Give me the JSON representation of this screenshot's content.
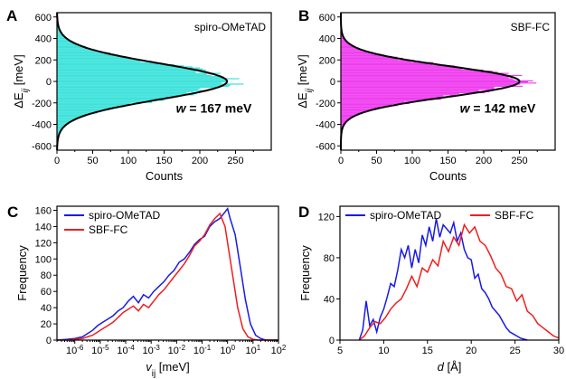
{
  "chart_data": [
    {
      "panel": "A",
      "type": "bar",
      "orientation": "horizontal-histogram",
      "ylabel_main": "ΔE",
      "ylabel_sub": "ij",
      "ylabel_unit": " [meV]",
      "xlabel": "Counts",
      "xlim": [
        0,
        300
      ],
      "ylim": [
        -640,
        640
      ],
      "xticks": [
        "0",
        "50",
        "100",
        "150",
        "200",
        "250"
      ],
      "yticks": [
        "600",
        "400",
        "200",
        "0",
        "-200",
        "-400",
        "-600"
      ],
      "series_label": "spiro-OMeTAD",
      "annotation_w": "w",
      "annotation_eq": " = 167 meV",
      "peak": 238,
      "sigma": 167,
      "color": "#33e0d8",
      "fit_color": "#000000"
    },
    {
      "panel": "B",
      "type": "bar",
      "orientation": "horizontal-histogram",
      "ylabel_main": "ΔE",
      "ylabel_sub": "ij",
      "ylabel_unit": " [meV]",
      "xlabel": "Counts",
      "xlim": [
        0,
        300
      ],
      "ylim": [
        -640,
        640
      ],
      "xticks": [
        "0",
        "50",
        "100",
        "150",
        "200",
        "250"
      ],
      "yticks": [
        "600",
        "400",
        "200",
        "0",
        "-200",
        "-400",
        "-600"
      ],
      "series_label": "SBF-FC",
      "annotation_w": "w",
      "annotation_eq": " = 142 meV",
      "peak": 250,
      "sigma": 142,
      "color": "#ee33ee",
      "fit_color": "#000000"
    },
    {
      "panel": "C",
      "type": "line",
      "xscale": "log",
      "xlabel_main": "v",
      "xlabel_sub": "ij",
      "xlabel_unit": " [meV]",
      "ylabel": "Frequency",
      "xlim": [
        -6.7,
        2
      ],
      "ylim": [
        0,
        165
      ],
      "xticks": [
        "-6",
        "-5",
        "-4",
        "-3",
        "-2",
        "-1",
        "0",
        "1",
        "2"
      ],
      "yticks": [
        "0",
        "20",
        "40",
        "60",
        "80",
        "100",
        "120",
        "140",
        "160"
      ],
      "legend_position": "top-left",
      "series": [
        {
          "name": "spiro-OMeTAD",
          "color": "#1a1ae6",
          "x": [
            -6.7,
            -6.3,
            -6.0,
            -5.7,
            -5.5,
            -5.3,
            -5.1,
            -4.9,
            -4.7,
            -4.5,
            -4.3,
            -4.1,
            -3.9,
            -3.7,
            -3.5,
            -3.3,
            -3.1,
            -2.9,
            -2.7,
            -2.5,
            -2.3,
            -2.1,
            -1.9,
            -1.7,
            -1.5,
            -1.3,
            -1.1,
            -0.9,
            -0.7,
            -0.5,
            -0.3,
            -0.1,
            0.0,
            0.1,
            0.3,
            0.5,
            0.7,
            0.9,
            1.1,
            1.3,
            1.5,
            1.7,
            2.0
          ],
          "y": [
            0,
            1,
            2,
            4,
            8,
            12,
            18,
            22,
            26,
            30,
            36,
            40,
            48,
            54,
            46,
            56,
            52,
            60,
            66,
            72,
            80,
            86,
            96,
            100,
            108,
            118,
            124,
            128,
            140,
            146,
            150,
            158,
            162,
            150,
            130,
            90,
            50,
            20,
            6,
            2,
            0,
            0,
            0
          ]
        },
        {
          "name": "SBF-FC",
          "color": "#ee1f1f",
          "x": [
            -6.7,
            -6.3,
            -6.0,
            -5.7,
            -5.5,
            -5.3,
            -5.1,
            -4.9,
            -4.7,
            -4.5,
            -4.3,
            -4.1,
            -3.9,
            -3.7,
            -3.5,
            -3.3,
            -3.1,
            -2.9,
            -2.7,
            -2.5,
            -2.3,
            -2.1,
            -1.9,
            -1.7,
            -1.5,
            -1.3,
            -1.1,
            -0.9,
            -0.7,
            -0.5,
            -0.3,
            -0.2,
            -0.1,
            0.0,
            0.2,
            0.4,
            0.6,
            0.8,
            1.0,
            1.2,
            1.5,
            2.0
          ],
          "y": [
            0,
            0,
            1,
            2,
            4,
            6,
            10,
            14,
            18,
            22,
            28,
            34,
            38,
            42,
            36,
            44,
            40,
            48,
            56,
            62,
            70,
            78,
            86,
            94,
            104,
            116,
            122,
            130,
            142,
            150,
            156,
            148,
            140,
            120,
            80,
            40,
            14,
            4,
            1,
            0,
            0,
            0
          ]
        }
      ]
    },
    {
      "panel": "D",
      "type": "line",
      "xlabel_main": "d",
      "xlabel_unit": " [Å]",
      "ylabel": "Frequency",
      "xlim": [
        5,
        30
      ],
      "ylim": [
        0,
        130
      ],
      "xticks": [
        "5",
        "10",
        "15",
        "20",
        "25",
        "30"
      ],
      "yticks": [
        "0",
        "40",
        "80",
        "120"
      ],
      "legend_position": "top",
      "series": [
        {
          "name": "spiro-OMeTAD",
          "color": "#1a1ae6",
          "x": [
            7.2,
            7.6,
            8.0,
            8.4,
            8.8,
            9.2,
            9.6,
            10.0,
            10.4,
            10.8,
            11.2,
            11.6,
            12.0,
            12.4,
            12.8,
            13.2,
            13.6,
            14.0,
            14.4,
            14.8,
            15.2,
            15.6,
            16.0,
            16.4,
            16.8,
            17.2,
            17.6,
            18.0,
            18.4,
            18.8,
            19.2,
            19.6,
            20.0,
            20.4,
            20.8,
            21.2,
            21.6,
            22.0,
            22.4,
            22.8,
            23.2,
            23.6,
            24.0,
            24.4,
            24.8,
            25.2,
            25.6,
            26.0,
            26.4
          ],
          "y": [
            0,
            10,
            38,
            14,
            20,
            8,
            22,
            30,
            42,
            55,
            52,
            68,
            88,
            80,
            92,
            70,
            88,
            75,
            102,
            92,
            110,
            96,
            118,
            100,
            112,
            108,
            104,
            114,
            96,
            104,
            88,
            80,
            78,
            60,
            64,
            50,
            46,
            40,
            32,
            28,
            24,
            18,
            12,
            8,
            6,
            4,
            2,
            1,
            0
          ]
        },
        {
          "name": "SBF-FC",
          "color": "#ee1f1f",
          "x": [
            7.2,
            7.8,
            8.4,
            9.0,
            9.6,
            10.2,
            10.8,
            11.4,
            12.0,
            12.6,
            13.2,
            13.8,
            14.4,
            15.0,
            15.6,
            16.2,
            16.8,
            17.4,
            18.0,
            18.6,
            19.2,
            19.8,
            20.4,
            21.0,
            21.6,
            22.2,
            22.8,
            23.4,
            24.0,
            24.6,
            25.2,
            25.8,
            26.4,
            27.0,
            27.6,
            28.2,
            28.8,
            29.4,
            30.0
          ],
          "y": [
            0,
            4,
            12,
            18,
            16,
            22,
            30,
            36,
            40,
            50,
            62,
            52,
            70,
            66,
            78,
            72,
            96,
            86,
            100,
            92,
            112,
            104,
            110,
            96,
            92,
            82,
            70,
            64,
            52,
            50,
            38,
            44,
            28,
            24,
            16,
            12,
            8,
            4,
            2
          ]
        }
      ]
    }
  ]
}
